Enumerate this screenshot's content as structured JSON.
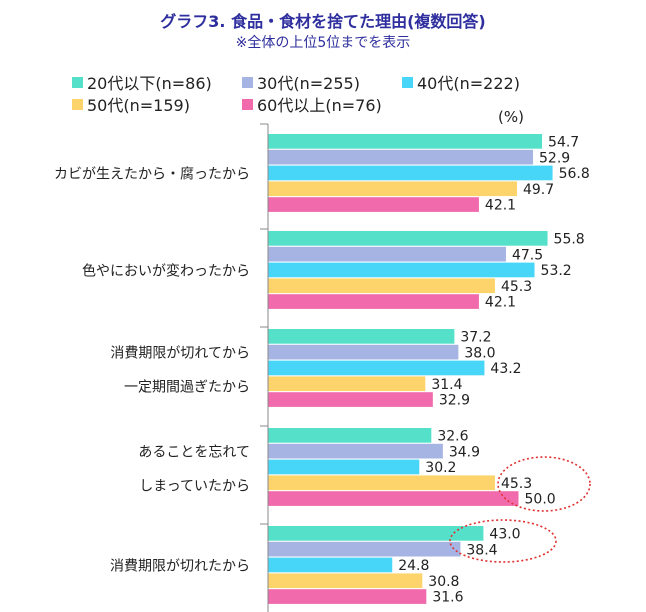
{
  "header": {
    "title": "グラフ3. 食品・食材を捨てた理由(複数回答)",
    "subtitle": "※全体の上位5位までを表示"
  },
  "unit_label": "(%)",
  "chart_data": {
    "type": "bar",
    "orientation": "horizontal",
    "title": "グラフ3. 食品・食材を捨てた理由(複数回答)",
    "subtitle": "※全体の上位5位までを表示",
    "unit": "(%)",
    "legend_position": "top",
    "categories": [
      [
        "カビが生えたから・腐ったから"
      ],
      [
        "色やにおいが変わったから"
      ],
      [
        "消費期限が切れてから",
        "一定期間過ぎたから"
      ],
      [
        "あることを忘れて",
        "しまっていたから"
      ],
      [
        "消費期限が切れたから"
      ]
    ],
    "series": [
      {
        "name": "20代以下(n=86)",
        "color": "#55e0c9",
        "values": [
          54.7,
          55.8,
          37.2,
          32.6,
          43.0
        ]
      },
      {
        "name": "30代(n=255)",
        "color": "#a6b4e3",
        "values": [
          52.9,
          47.5,
          38.0,
          34.9,
          38.4
        ]
      },
      {
        "name": "40代(n=222)",
        "color": "#47d6f7",
        "values": [
          56.8,
          53.2,
          43.2,
          30.2,
          24.8
        ]
      },
      {
        "name": "50代(n=159)",
        "color": "#fcd46b",
        "values": [
          49.7,
          45.3,
          31.4,
          45.3,
          30.8
        ]
      },
      {
        "name": "60代以上(n=76)",
        "color": "#f06aac",
        "values": [
          42.1,
          42.1,
          32.9,
          50.0,
          31.6
        ]
      }
    ],
    "value_labels": [
      [
        "54.7",
        "52.9",
        "56.8",
        "49.7",
        "42.1"
      ],
      [
        "55.8",
        "47.5",
        "53.2",
        "45.3",
        "42.1"
      ],
      [
        "37.2",
        "38.0",
        "43.2",
        "31.4",
        "32.9"
      ],
      [
        "32.6",
        "34.9",
        "30.2",
        "45.3",
        "50.0"
      ],
      [
        "43.0",
        "38.4",
        "24.8",
        "30.8",
        "31.6"
      ]
    ],
    "xlim": [
      0,
      60
    ],
    "grid": false,
    "highlight_color": "#e03030"
  }
}
